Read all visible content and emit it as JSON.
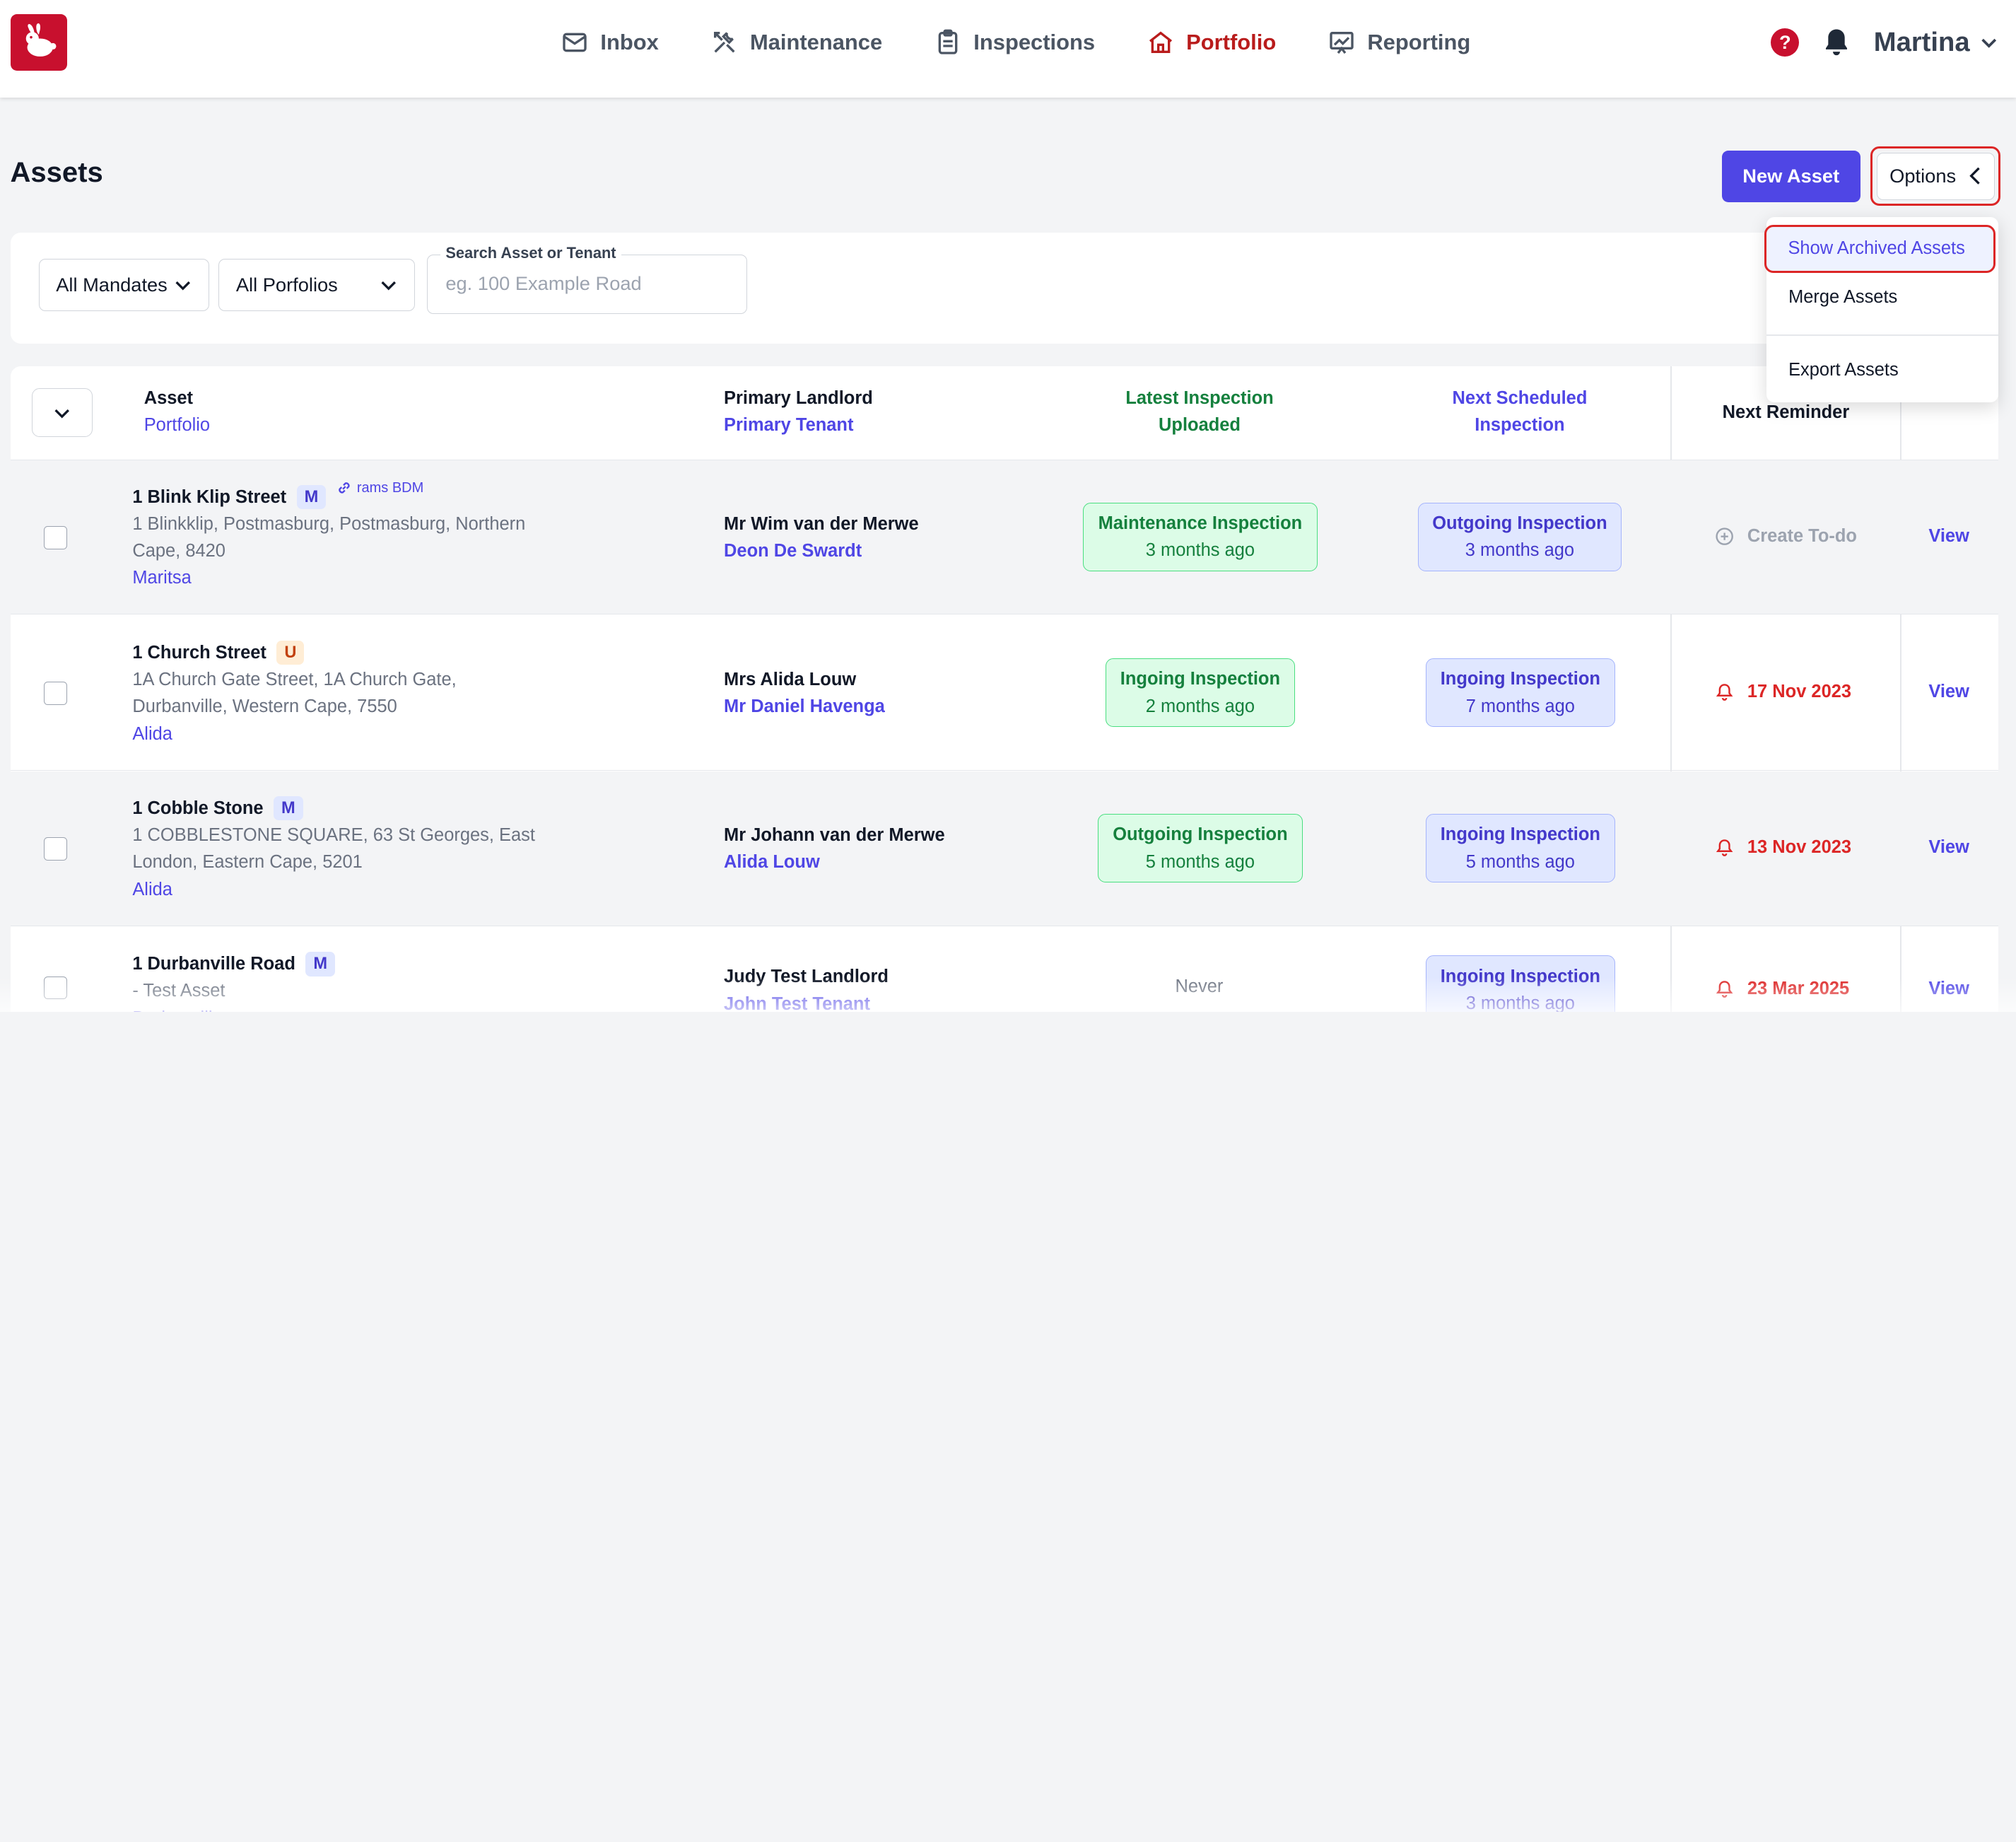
{
  "nav": {
    "items": [
      {
        "label": "Inbox",
        "icon": "envelope-icon"
      },
      {
        "label": "Maintenance",
        "icon": "tools-icon"
      },
      {
        "label": "Inspections",
        "icon": "clipboard-icon"
      },
      {
        "label": "Portfolio",
        "icon": "home-icon",
        "active": true
      },
      {
        "label": "Reporting",
        "icon": "chart-icon"
      }
    ],
    "help_glyph": "?",
    "user_name": "Martina"
  },
  "page": {
    "title": "Assets",
    "new_asset_label": "New Asset",
    "options_label": "Options"
  },
  "options_menu": {
    "items": [
      "Show Archived Assets",
      "Merge Assets",
      "Export Assets"
    ]
  },
  "filters": {
    "mandate": "All Mandates",
    "portfolio": "All Porfolios",
    "search_label": "Search Asset or Tenant",
    "search_placeholder": "eg. 100 Example Road"
  },
  "table": {
    "headers": {
      "asset": "Asset",
      "portfolio": "Portfolio",
      "landlord": "Primary Landlord",
      "tenant": "Primary Tenant",
      "latest_line1": "Latest Inspection",
      "latest_line2": "Uploaded",
      "next_line1": "Next Scheduled",
      "next_line2": "Inspection",
      "reminder": "Next Reminder"
    },
    "rows": [
      {
        "name": "1 Blink Klip Street",
        "badge": "M",
        "link": "rams BDM",
        "addr1": "1 Blinkklip, Postmasburg, Postmasburg, Northern",
        "addr2": "Cape, 8420",
        "portfolio": "Maritsa",
        "landlord": "Mr Wim van der Merwe",
        "tenant": "Deon De Swardt",
        "latest_title": "Maintenance Inspection",
        "latest_when": "3 months ago",
        "next_title": "Outgoing Inspection",
        "next_when": "3 months ago",
        "reminder": "Create To-do",
        "view": "View"
      },
      {
        "name": "1 Church Street",
        "badge": "U",
        "link": "",
        "addr1": "1A Church Gate Street, 1A Church Gate,",
        "addr2": "Durbanville, Western Cape, 7550",
        "portfolio": "Alida",
        "landlord": "Mrs Alida Louw",
        "tenant": "Mr Daniel Havenga",
        "latest_title": "Ingoing Inspection",
        "latest_when": "2 months ago",
        "next_title": "Ingoing Inspection",
        "next_when": "7 months ago",
        "reminder": "17 Nov 2023",
        "view": "View"
      },
      {
        "name": "1 Cobble Stone",
        "badge": "M",
        "link": "",
        "addr1": "1 COBBLESTONE SQUARE, 63 St Georges, East",
        "addr2": "London, Eastern Cape, 5201",
        "portfolio": "Alida",
        "landlord": "Mr Johann van der Merwe",
        "tenant": "Alida Louw",
        "latest_title": "Outgoing Inspection",
        "latest_when": "5 months ago",
        "next_title": "Ingoing Inspection",
        "next_when": "5 months ago",
        "reminder": "13 Nov 2023",
        "view": "View"
      },
      {
        "name": "1 Durbanville Road",
        "badge": "M",
        "link": "",
        "addr1": "- Test Asset",
        "addr2": "",
        "portfolio": "Durbanville",
        "landlord": "Judy Test Landlord",
        "tenant": "John Test Tenant",
        "latest_title": "Never",
        "latest_when": "",
        "next_title": "Ingoing Inspection",
        "next_when": "3 months ago",
        "reminder": "23 Mar 2025",
        "view": "View"
      }
    ]
  },
  "colors": {
    "brand_red": "#c8102e",
    "accent_indigo": "#4f46e5",
    "success_green": "#15803d",
    "alert_red": "#dc2626"
  }
}
